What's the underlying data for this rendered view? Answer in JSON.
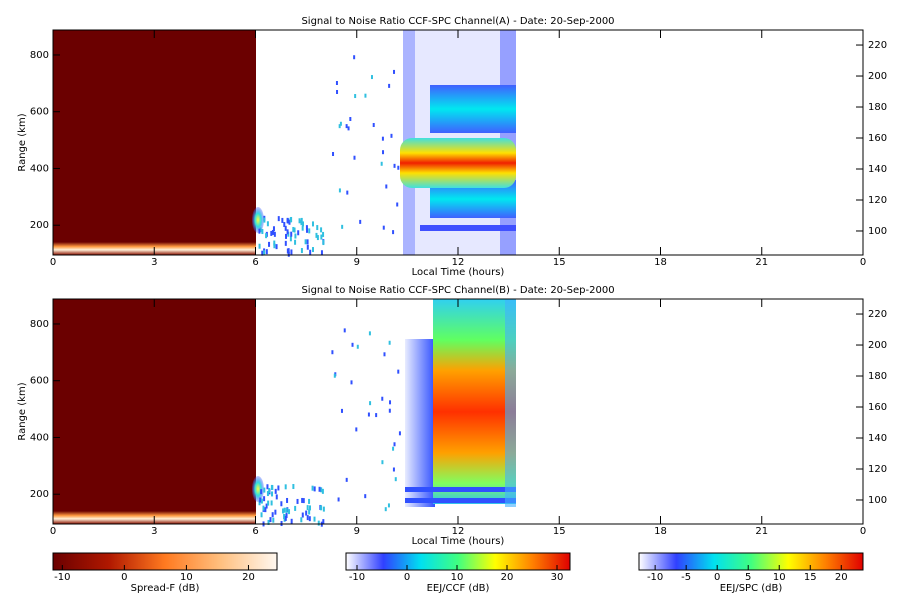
{
  "chart_data": [
    {
      "type": "heatmap",
      "title": "Signal to Noise Ratio CCF-SPC Channel(A) - Date: 20-Sep-2000",
      "xlabel": "Local Time (hours)",
      "ylabel": "Range (km)",
      "xlim": [
        0,
        24
      ],
      "xticks": [
        0,
        3,
        6,
        9,
        12,
        15,
        18,
        21,
        {
          "value": 24,
          "label": "0"
        }
      ],
      "ylim": [
        95,
        888
      ],
      "yticks": [
        200,
        400,
        600,
        800
      ],
      "y2lim": [
        84.5,
        229.7
      ],
      "y2ticks": [
        100,
        120,
        140,
        160,
        180,
        200,
        220
      ]
    },
    {
      "type": "heatmap",
      "title": "Signal to Noise Ratio CCF-SPC Channel(B) - Date: 20-Sep-2000",
      "xlabel": "Local Time (hours)",
      "ylabel": "Range (km)",
      "xlim": [
        0,
        24
      ],
      "xticks": [
        0,
        3,
        6,
        9,
        12,
        15,
        18,
        21,
        {
          "value": 24,
          "label": "0"
        }
      ],
      "ylim": [
        95,
        888
      ],
      "yticks": [
        200,
        400,
        600,
        800
      ],
      "y2lim": [
        84.5,
        229.7
      ],
      "y2ticks": [
        100,
        120,
        140,
        160,
        180,
        200,
        220
      ]
    }
  ],
  "colorbars": [
    {
      "label": "Spread-F (dB)",
      "lim": [
        -11.5,
        24.6
      ],
      "ticks": [
        -10,
        0,
        10,
        20
      ],
      "colors": [
        "#6b0000",
        "#b01800",
        "#ff7a20",
        "#ffc080",
        "#fff8f0"
      ]
    },
    {
      "label": "EEJ/CCF (dB)",
      "lim": [
        -12.2,
        32.6
      ],
      "ticks": [
        -10,
        0,
        10,
        20,
        30
      ],
      "colors": [
        "#ffffff",
        "#3040ff",
        "#00e0f0",
        "#40ff80",
        "#ffff00",
        "#ff8000",
        "#e00000"
      ]
    },
    {
      "label": "EEJ/SPC (dB)",
      "lim": [
        -12.6,
        23.5
      ],
      "ticks": [
        -10,
        -5,
        0,
        5,
        10,
        15,
        20
      ],
      "colors": [
        "#ffffff",
        "#3040ff",
        "#00e0f0",
        "#40ff80",
        "#ffff00",
        "#ff8000",
        "#e00000"
      ]
    }
  ]
}
